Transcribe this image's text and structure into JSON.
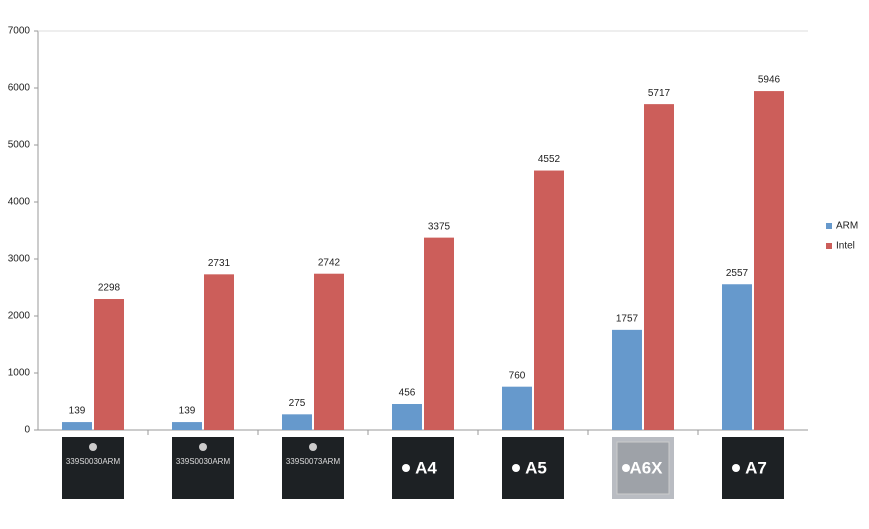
{
  "chart_data": {
    "type": "bar",
    "categories": [
      "339S0030ARM",
      "339S0030ARM",
      "339S0073ARM",
      "A4",
      "A5",
      "A6X",
      "A7"
    ],
    "series": [
      {
        "name": "ARM",
        "color": "#6699cc",
        "values": [
          139,
          139,
          275,
          456,
          760,
          1757,
          2557
        ]
      },
      {
        "name": "Intel",
        "color": "#cc5e5a",
        "values": [
          2298,
          2731,
          2742,
          3375,
          4552,
          5717,
          5946
        ]
      }
    ],
    "ylim": [
      0,
      7000
    ],
    "yticks": [
      0,
      1000,
      2000,
      3000,
      4000,
      5000,
      6000,
      7000
    ],
    "legend": "right"
  }
}
